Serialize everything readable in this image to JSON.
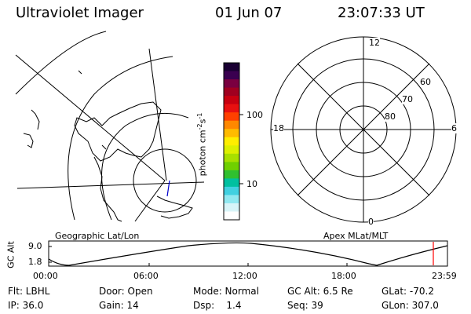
{
  "header": {
    "instrument": "Ultraviolet Imager",
    "date": "01 Jun 07",
    "time": "23:07:33 UT"
  },
  "colorbar": {
    "unit_label": "photon cm",
    "unit_exp1": "-2",
    "unit_mid": "s",
    "unit_exp2": "-1",
    "ticks": [
      "100",
      "10"
    ],
    "colors": [
      "#1a0033",
      "#3a0050",
      "#7a0040",
      "#a00020",
      "#c80010",
      "#e81010",
      "#ff4000",
      "#ff8800",
      "#ffbb00",
      "#ffee00",
      "#ddf000",
      "#a8e000",
      "#70d000",
      "#30c030",
      "#00c0a0",
      "#40d0e0",
      "#90e8f0",
      "#d8f4f8",
      "#ffffff"
    ]
  },
  "polar_plot": {
    "mlt_labels": [
      "12",
      "18",
      "6",
      "0"
    ],
    "lat_labels": [
      "60",
      "70",
      "80"
    ]
  },
  "map_caption": "Geographic Lat/Lon",
  "polar_caption": "Apex MLat/MLT",
  "alt_plot": {
    "ylabel": "GC Alt",
    "y_ticks": [
      "9.0",
      "1.8"
    ],
    "x_ticks": [
      "00:00",
      "06:00",
      "12:00",
      "18:00",
      "23:59"
    ],
    "current_time_marker_color": "#ff0000"
  },
  "info": {
    "filter": "Flt: LBHL",
    "door": "Door: Open",
    "mode": "Mode: Normal",
    "gc_alt": "GC Alt: 6.5 Re",
    "glat": "GLat: -70.2",
    "ip": "IP: 36.0",
    "gain": "Gain: 14",
    "dsp_label": "Dsp:",
    "dsp_value": "1.4",
    "seq": "Seq: 39",
    "glon": "GLon: 307.0"
  }
}
